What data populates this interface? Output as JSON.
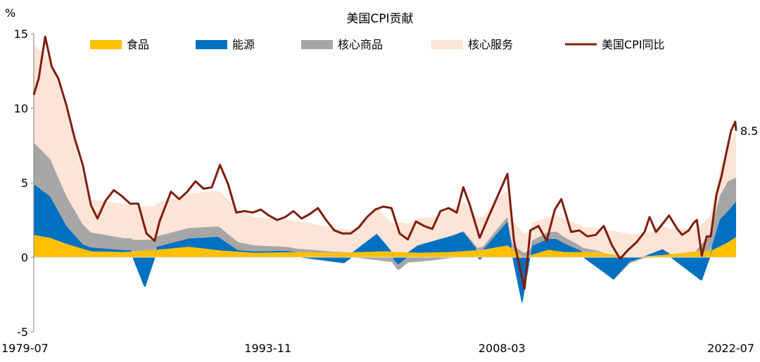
{
  "chart_data": {
    "type": "area",
    "title": "美国CPI贡献",
    "ylabel": "%",
    "ylim": [
      -5,
      15
    ],
    "yticks": [
      "15",
      "10",
      "5",
      "0",
      "-5"
    ],
    "xticks": [
      "1979-07",
      "1993-11",
      "2008-03",
      "2022-07"
    ],
    "x_range": [
      "1979-07",
      "2022-07"
    ],
    "grid": false,
    "legend_position": "top",
    "last_value_label": "8.5",
    "series": [
      {
        "name": "食品",
        "kind": "stacked-area",
        "color": "#FFC000",
        "points": [
          [
            1979.5,
            1.5
          ],
          [
            1980.5,
            1.3
          ],
          [
            1981.5,
            0.9
          ],
          [
            1983,
            0.4
          ],
          [
            1985,
            0.35
          ],
          [
            1987,
            0.5
          ],
          [
            1989,
            0.7
          ],
          [
            1991,
            0.45
          ],
          [
            1993,
            0.3
          ],
          [
            1996,
            0.35
          ],
          [
            1998,
            0.3
          ],
          [
            2001,
            0.4
          ],
          [
            2003,
            0.3
          ],
          [
            2005,
            0.35
          ],
          [
            2007,
            0.5
          ],
          [
            2008.5,
            0.8
          ],
          [
            2009.5,
            0.0
          ],
          [
            2011,
            0.5
          ],
          [
            2012,
            0.35
          ],
          [
            2014,
            0.35
          ],
          [
            2016,
            0.0
          ],
          [
            2018,
            0.15
          ],
          [
            2020,
            0.4
          ],
          [
            2021,
            0.45
          ],
          [
            2022,
            1.0
          ],
          [
            2022.5,
            1.35
          ]
        ]
      },
      {
        "name": "能源",
        "kind": "stacked-area",
        "color": "#0070C0",
        "points": [
          [
            1979.5,
            3.4
          ],
          [
            1980.5,
            2.8
          ],
          [
            1981.5,
            1.2
          ],
          [
            1982.5,
            0.3
          ],
          [
            1984,
            0.2
          ],
          [
            1985.5,
            0.1
          ],
          [
            1986.3,
            -2.1
          ],
          [
            1987,
            0.2
          ],
          [
            1990.8,
            0.9
          ],
          [
            1992,
            0.1
          ],
          [
            1995,
            0.1
          ],
          [
            1998.5,
            -0.4
          ],
          [
            2000.5,
            1.2
          ],
          [
            2001.8,
            -0.5
          ],
          [
            2003,
            0.5
          ],
          [
            2005.8,
            1.3
          ],
          [
            2006.8,
            -0.2
          ],
          [
            2008.5,
            1.6
          ],
          [
            2009.4,
            -3.2
          ],
          [
            2010,
            0.6
          ],
          [
            2011.5,
            0.8
          ],
          [
            2013,
            0.1
          ],
          [
            2015,
            -1.5
          ],
          [
            2016,
            -0.3
          ],
          [
            2018,
            0.4
          ],
          [
            2020.4,
            -1.6
          ],
          [
            2021.5,
            1.8
          ],
          [
            2022.5,
            2.4
          ]
        ]
      },
      {
        "name": "核心商品",
        "kind": "stacked-area",
        "color": "#A6A6A6",
        "points": [
          [
            1979.5,
            2.8
          ],
          [
            1980.5,
            2.5
          ],
          [
            1981.5,
            2.0
          ],
          [
            1983,
            1.0
          ],
          [
            1985,
            0.8
          ],
          [
            1987,
            0.7
          ],
          [
            1989,
            0.7
          ],
          [
            1991,
            0.7
          ],
          [
            1993,
            0.4
          ],
          [
            1996,
            0.2
          ],
          [
            1999,
            0.0
          ],
          [
            2002,
            -0.4
          ],
          [
            2004,
            -0.2
          ],
          [
            2006,
            0.1
          ],
          [
            2008,
            0.3
          ],
          [
            2009.5,
            0.3
          ],
          [
            2011.5,
            0.5
          ],
          [
            2013,
            0.3
          ],
          [
            2014.5,
            0.0
          ],
          [
            2016,
            -0.1
          ],
          [
            2018,
            0.0
          ],
          [
            2020,
            0.0
          ],
          [
            2021,
            1.2
          ],
          [
            2022,
            2.0
          ],
          [
            2022.5,
            1.6
          ]
        ]
      },
      {
        "name": "核心服务",
        "kind": "stacked-area",
        "color": "#FCE4D6",
        "points": [
          [
            1979.5,
            6.5
          ],
          [
            1980.5,
            6.8
          ],
          [
            1981.5,
            5.8
          ],
          [
            1983,
            2.2
          ],
          [
            1985,
            2.3
          ],
          [
            1987,
            2.2
          ],
          [
            1989,
            2.3
          ],
          [
            1991,
            2.4
          ],
          [
            1993,
            1.9
          ],
          [
            1996,
            1.8
          ],
          [
            1999,
            1.5
          ],
          [
            2002,
            2.0
          ],
          [
            2004,
            1.6
          ],
          [
            2006,
            2.0
          ],
          [
            2008,
            2.0
          ],
          [
            2009.5,
            1.3
          ],
          [
            2011,
            1.0
          ],
          [
            2013,
            1.4
          ],
          [
            2015,
            1.6
          ],
          [
            2017,
            1.5
          ],
          [
            2019,
            1.7
          ],
          [
            2020.5,
            1.3
          ],
          [
            2021,
            1.2
          ],
          [
            2022,
            2.3
          ],
          [
            2022.5,
            3.2
          ]
        ]
      },
      {
        "name": "美国CPI同比",
        "kind": "line",
        "color": "#7F1D0E",
        "points": [
          [
            1979.5,
            10.9
          ],
          [
            1979.8,
            12.0
          ],
          [
            1980.2,
            14.8
          ],
          [
            1980.6,
            12.8
          ],
          [
            1981.0,
            12.0
          ],
          [
            1981.5,
            10.2
          ],
          [
            1982.0,
            8.0
          ],
          [
            1982.5,
            6.2
          ],
          [
            1983.0,
            3.5
          ],
          [
            1983.4,
            2.6
          ],
          [
            1983.9,
            3.8
          ],
          [
            1984.4,
            4.5
          ],
          [
            1984.9,
            4.1
          ],
          [
            1985.4,
            3.6
          ],
          [
            1985.9,
            3.6
          ],
          [
            1986.4,
            1.6
          ],
          [
            1986.9,
            1.1
          ],
          [
            1987.2,
            2.4
          ],
          [
            1987.9,
            4.4
          ],
          [
            1988.4,
            3.9
          ],
          [
            1988.9,
            4.4
          ],
          [
            1989.4,
            5.1
          ],
          [
            1989.9,
            4.6
          ],
          [
            1990.4,
            4.7
          ],
          [
            1990.9,
            6.2
          ],
          [
            1991.4,
            4.9
          ],
          [
            1991.9,
            3.0
          ],
          [
            1992.4,
            3.1
          ],
          [
            1992.9,
            3.0
          ],
          [
            1993.4,
            3.2
          ],
          [
            1993.9,
            2.8
          ],
          [
            1994.4,
            2.5
          ],
          [
            1994.9,
            2.7
          ],
          [
            1995.4,
            3.1
          ],
          [
            1995.9,
            2.6
          ],
          [
            1996.4,
            2.9
          ],
          [
            1996.9,
            3.3
          ],
          [
            1997.4,
            2.5
          ],
          [
            1997.9,
            1.8
          ],
          [
            1998.4,
            1.6
          ],
          [
            1998.9,
            1.6
          ],
          [
            1999.4,
            2.0
          ],
          [
            1999.9,
            2.7
          ],
          [
            2000.4,
            3.2
          ],
          [
            2000.9,
            3.4
          ],
          [
            2001.4,
            3.3
          ],
          [
            2001.9,
            1.6
          ],
          [
            2002.4,
            1.2
          ],
          [
            2002.9,
            2.4
          ],
          [
            2003.4,
            2.1
          ],
          [
            2003.9,
            1.9
          ],
          [
            2004.4,
            3.1
          ],
          [
            2004.9,
            3.3
          ],
          [
            2005.4,
            3.0
          ],
          [
            2005.8,
            4.7
          ],
          [
            2006.2,
            3.5
          ],
          [
            2006.8,
            1.3
          ],
          [
            2007.3,
            2.6
          ],
          [
            2007.9,
            4.1
          ],
          [
            2008.5,
            5.6
          ],
          [
            2008.9,
            1.1
          ],
          [
            2009.2,
            -0.4
          ],
          [
            2009.55,
            -2.1
          ],
          [
            2009.9,
            1.8
          ],
          [
            2010.4,
            2.1
          ],
          [
            2010.9,
            1.1
          ],
          [
            2011.4,
            3.2
          ],
          [
            2011.8,
            3.9
          ],
          [
            2012.4,
            1.7
          ],
          [
            2012.9,
            1.8
          ],
          [
            2013.4,
            1.4
          ],
          [
            2013.9,
            1.5
          ],
          [
            2014.4,
            2.1
          ],
          [
            2014.9,
            0.8
          ],
          [
            2015.4,
            -0.1
          ],
          [
            2015.9,
            0.5
          ],
          [
            2016.4,
            1.0
          ],
          [
            2016.9,
            1.7
          ],
          [
            2017.2,
            2.7
          ],
          [
            2017.6,
            1.7
          ],
          [
            2017.9,
            2.1
          ],
          [
            2018.4,
            2.8
          ],
          [
            2018.9,
            1.9
          ],
          [
            2019.2,
            1.5
          ],
          [
            2019.6,
            1.8
          ],
          [
            2019.9,
            2.3
          ],
          [
            2020.1,
            2.5
          ],
          [
            2020.4,
            0.1
          ],
          [
            2020.7,
            1.4
          ],
          [
            2020.95,
            1.4
          ],
          [
            2021.3,
            4.2
          ],
          [
            2021.6,
            5.4
          ],
          [
            2021.9,
            7.0
          ],
          [
            2022.2,
            8.5
          ],
          [
            2022.45,
            9.1
          ],
          [
            2022.5,
            8.5
          ]
        ]
      }
    ]
  }
}
